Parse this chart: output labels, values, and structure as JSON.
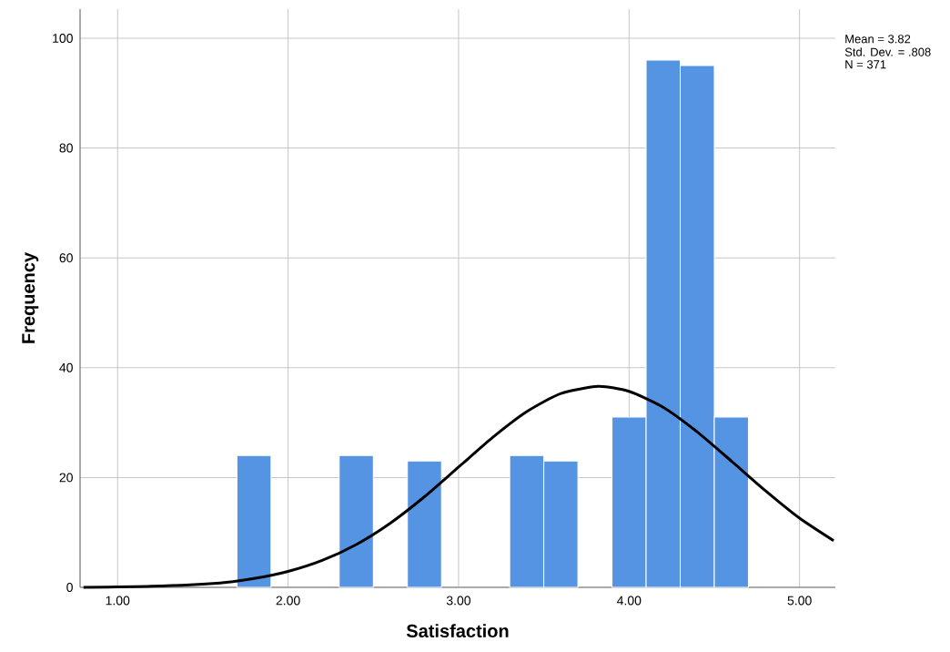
{
  "chart_data": {
    "type": "histogram",
    "xlabel": "Satisfaction",
    "ylabel": "Frequency",
    "bins": [
      1.7,
      1.9,
      2.1,
      2.3,
      2.5,
      2.7,
      2.9,
      3.1,
      3.3,
      3.5,
      3.7,
      3.9,
      4.1,
      4.3,
      4.5,
      4.7
    ],
    "values": [
      24,
      0,
      0,
      24,
      0,
      23,
      0,
      0,
      24,
      23,
      0,
      31,
      96,
      95,
      31
    ],
    "color": "#5594e3",
    "series": [
      {
        "type": "line",
        "color": "#000000",
        "x": [
          0.8,
          1.2,
          1.6,
          1.8,
          2.0,
          2.2,
          2.4,
          2.6,
          2.8,
          3.0,
          3.2,
          3.4,
          3.6,
          3.82,
          4.0,
          4.2,
          4.4,
          4.6,
          4.8,
          5.0,
          5.2
        ],
        "values": [
          0.0,
          0.2,
          0.8,
          1.6,
          2.9,
          4.9,
          7.8,
          11.7,
          16.5,
          21.9,
          27.3,
          32.0,
          35.3,
          36.6,
          35.7,
          32.8,
          28.3,
          23.0,
          17.6,
          12.6,
          8.5
        ]
      }
    ],
    "xlim": [
      0.78,
      5.21
    ],
    "ylim": [
      0,
      105.3
    ],
    "xticks": [
      {
        "value": 1,
        "label": "1.00"
      },
      {
        "value": 2,
        "label": "2.00"
      },
      {
        "value": 3,
        "label": "3.00"
      },
      {
        "value": 4,
        "label": "4.00"
      },
      {
        "value": 5,
        "label": "5.00"
      }
    ],
    "yticks": [
      0,
      20,
      40,
      60,
      80,
      100
    ],
    "grid": true,
    "marker": "none",
    "line_style": "solid",
    "annotations": [
      "Mean = 3.82",
      "Std. Dev. = .808",
      "N = 371"
    ]
  }
}
